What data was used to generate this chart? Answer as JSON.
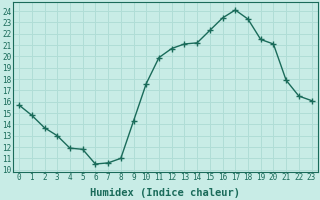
{
  "x": [
    0,
    1,
    2,
    3,
    4,
    5,
    6,
    7,
    8,
    9,
    10,
    11,
    12,
    13,
    14,
    15,
    16,
    17,
    18,
    19,
    20,
    21,
    22,
    23
  ],
  "y": [
    15.7,
    14.8,
    13.7,
    13.0,
    11.9,
    11.8,
    10.5,
    10.6,
    11.0,
    14.3,
    17.6,
    19.9,
    20.7,
    21.1,
    21.2,
    22.3,
    23.4,
    24.1,
    23.3,
    21.5,
    21.1,
    17.9,
    16.5,
    16.1
  ],
  "xlabel": "Humidex (Indice chaleur)",
  "xlim": [
    -0.5,
    23.5
  ],
  "ylim": [
    9.8,
    24.8
  ],
  "yticks": [
    10,
    11,
    12,
    13,
    14,
    15,
    16,
    17,
    18,
    19,
    20,
    21,
    22,
    23,
    24
  ],
  "xticks": [
    0,
    1,
    2,
    3,
    4,
    5,
    6,
    7,
    8,
    9,
    10,
    11,
    12,
    13,
    14,
    15,
    16,
    17,
    18,
    19,
    20,
    21,
    22,
    23
  ],
  "line_color": "#1a6b5a",
  "bg_color": "#c8ece6",
  "grid_color": "#b0ddd6",
  "marker": "+",
  "marker_size": 4,
  "line_width": 1.0,
  "tick_fontsize": 5.5,
  "xlabel_fontsize": 7.5
}
